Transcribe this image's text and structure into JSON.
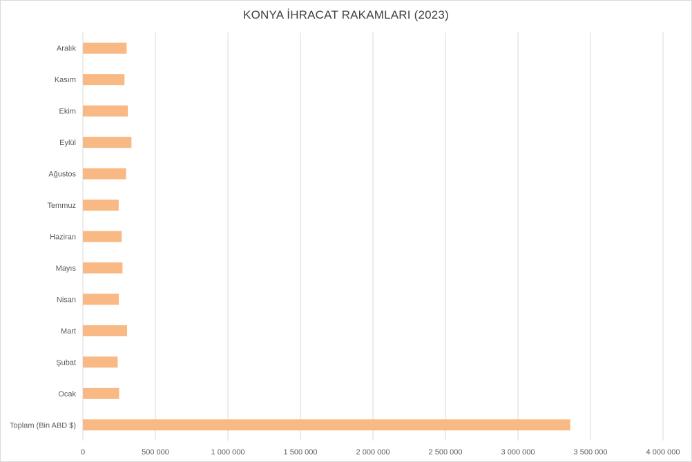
{
  "chart_data": {
    "type": "bar",
    "orientation": "horizontal",
    "title": "KONYA İHRACAT RAKAMLARI (2023)",
    "categories": [
      "Toplam  (Bin  ABD $)",
      "Ocak",
      "Şubat",
      "Mart",
      "Nisan",
      "Mayıs",
      "Haziran",
      "Temmuz",
      "Ağustos",
      "Eylül",
      "Ekim",
      "Kasım",
      "Aralık"
    ],
    "values": [
      3360000,
      250000,
      240000,
      305000,
      248000,
      273000,
      268000,
      247000,
      298000,
      335000,
      310000,
      287000,
      302000
    ],
    "xlim": [
      0,
      4000000
    ],
    "xticks": [
      0,
      500000,
      1000000,
      1500000,
      2000000,
      2500000,
      3000000,
      3500000,
      4000000
    ],
    "xtick_labels": [
      "0",
      "500 000",
      "1 000 000",
      "1 500 000",
      "2 000 000",
      "2 500 000",
      "3 000 000",
      "3 500 000",
      "4 000 000"
    ],
    "grid": true,
    "legend": "none",
    "bar_color": "#f8b984",
    "grid_color": "#d9d9d9"
  }
}
